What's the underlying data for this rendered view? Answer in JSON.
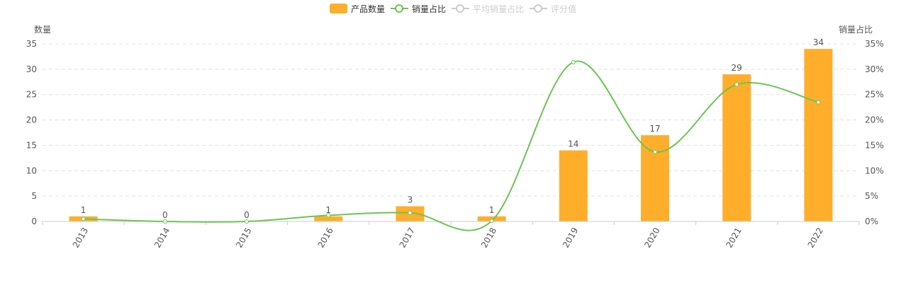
{
  "legend": {
    "items": [
      {
        "label": "产品数量",
        "kind": "bar",
        "active": true,
        "color": "#ffae2b"
      },
      {
        "label": "销量占比",
        "kind": "line",
        "active": true,
        "color": "#6cc551"
      },
      {
        "label": "平均销量占比",
        "kind": "line",
        "active": false,
        "color": "#cccccc"
      },
      {
        "label": "评分值",
        "kind": "line",
        "active": false,
        "color": "#cccccc"
      }
    ]
  },
  "chart_data": {
    "type": "bar",
    "categories": [
      "2013",
      "2014",
      "2015",
      "2016",
      "2017",
      "2018",
      "2019",
      "2020",
      "2021",
      "2022"
    ],
    "series": [
      {
        "name": "产品数量",
        "type": "bar",
        "axis": "left",
        "color": "#ffae2b",
        "values": [
          1,
          0,
          0,
          1,
          3,
          1,
          14,
          17,
          29,
          34
        ]
      },
      {
        "name": "销量占比",
        "type": "line",
        "axis": "right",
        "color": "#6cc551",
        "values": [
          0.5,
          0.0,
          0.0,
          1.2,
          1.7,
          0.1,
          31.4,
          13.7,
          27.0,
          23.5
        ]
      }
    ],
    "ylabel_left": "数量",
    "ylabel_right": "销量占比",
    "ylim_left": [
      0,
      35
    ],
    "yticks_left": [
      "0",
      "5",
      "10",
      "15",
      "20",
      "25",
      "30",
      "35"
    ],
    "ylim_right": [
      0,
      35
    ],
    "yticks_right": [
      "0%",
      "5%",
      "10%",
      "15%",
      "20%",
      "25%",
      "30%",
      "35%"
    ],
    "grid": true,
    "legend_position": "top-center",
    "xlabel_rotation": -60
  }
}
